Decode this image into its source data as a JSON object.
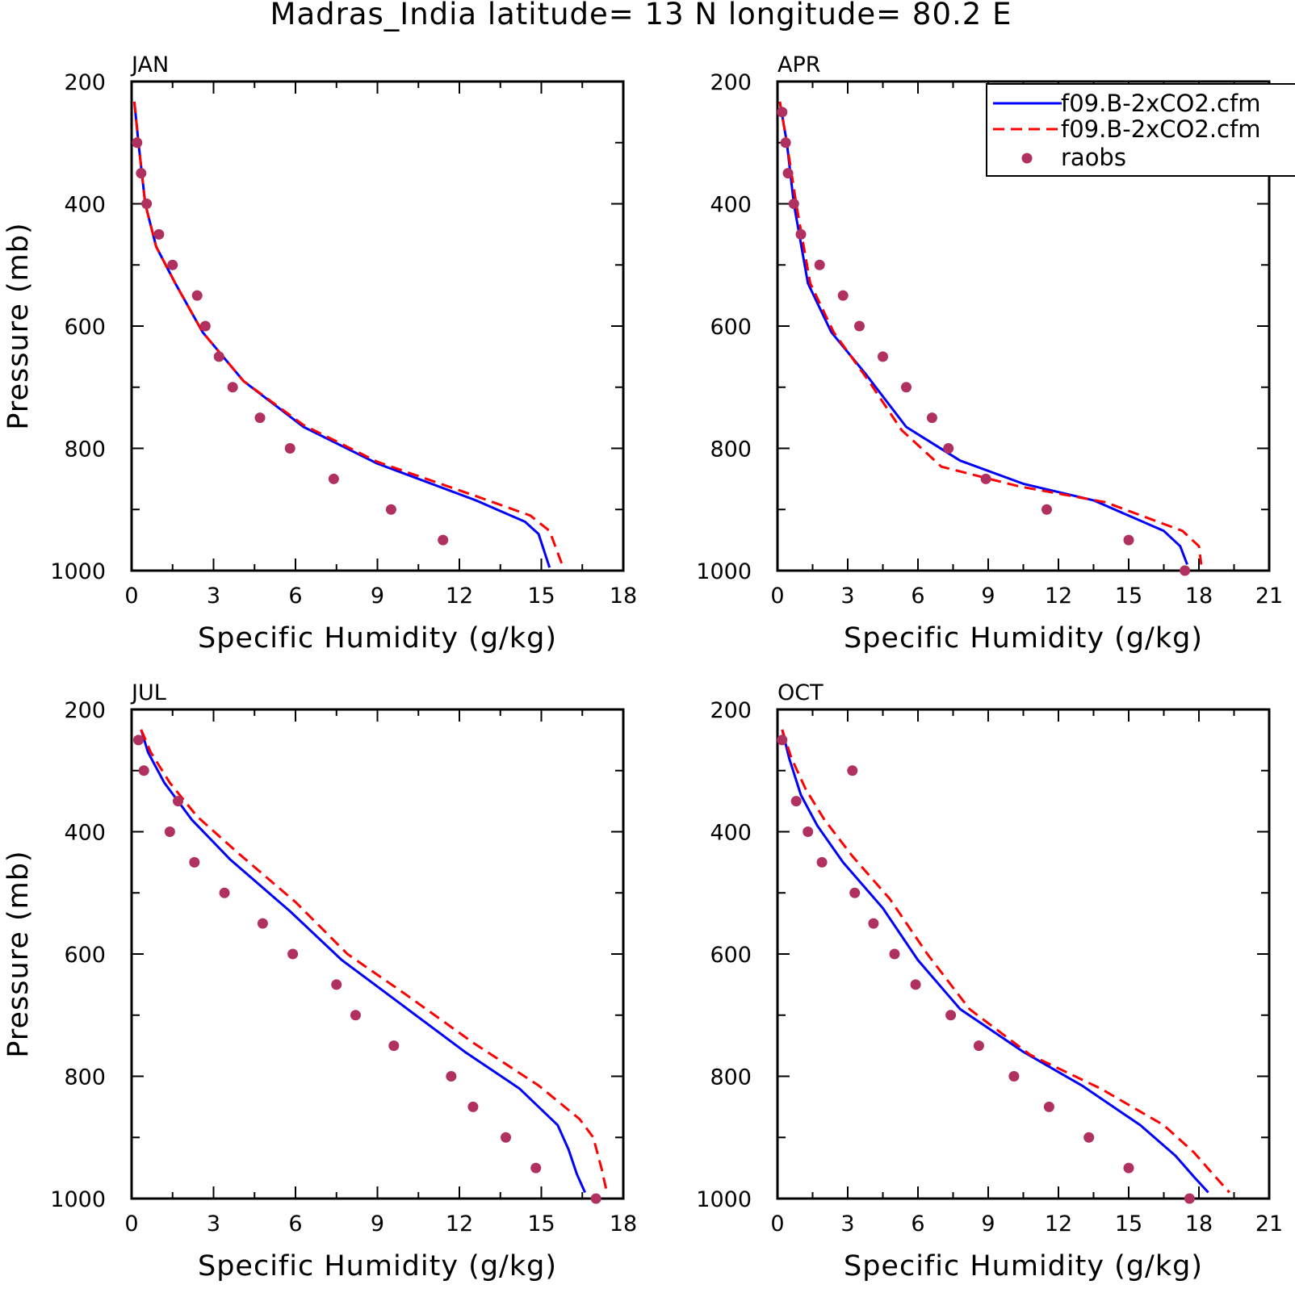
{
  "title": "Madras_India  latitude= 13 N longitude= 80.2 E",
  "colors": {
    "model1": "#0000ff",
    "model2": "#ff0000",
    "obs": "#b03060"
  },
  "legend": {
    "entries": [
      {
        "label": "f09.B-2xCO2.cfm",
        "style": "solid",
        "color": "#0000ff"
      },
      {
        "label": "f09.B-2xCO2.cfm",
        "style": "dashed",
        "color": "#ff0000"
      },
      {
        "label": "raobs",
        "style": "marker",
        "color": "#b03060"
      }
    ],
    "placement": "top-right of APR panel"
  },
  "chart_data": [
    {
      "type": "line",
      "panel": "JAN",
      "title": "JAN",
      "xlabel": "Specific Humidity (g/kg)",
      "ylabel": "Pressure (mb)",
      "xlim": [
        0,
        18
      ],
      "ylim": [
        1000,
        200
      ],
      "xticks": [
        0,
        3,
        6,
        9,
        12,
        15,
        18
      ],
      "yticks": [
        200,
        400,
        600,
        800,
        1000
      ],
      "series": [
        {
          "style": "solid",
          "color": "#0000ff",
          "x": [
            0.1,
            0.25,
            0.5,
            0.9,
            1.6,
            2.6,
            4.1,
            6.3,
            9.0,
            12.6,
            14.4,
            14.9,
            15.3
          ],
          "y": [
            233,
            300,
            400,
            470,
            530,
            610,
            690,
            765,
            825,
            885,
            920,
            940,
            995
          ]
        },
        {
          "style": "dashed",
          "color": "#ff0000",
          "x": [
            0.1,
            0.25,
            0.5,
            0.9,
            1.6,
            2.6,
            4.1,
            6.3,
            9.0,
            12.6,
            14.6,
            15.3,
            15.8
          ],
          "y": [
            233,
            300,
            400,
            470,
            530,
            610,
            690,
            762,
            822,
            878,
            910,
            935,
            995
          ]
        },
        {
          "style": "marker",
          "color": "#b03060",
          "x": [
            0.2,
            0.35,
            0.55,
            1.0,
            1.5,
            2.4,
            2.7,
            3.2,
            3.7,
            4.7,
            5.8,
            7.4,
            9.5,
            11.4
          ],
          "y": [
            300,
            350,
            400,
            450,
            500,
            550,
            600,
            650,
            700,
            750,
            800,
            850,
            900,
            950
          ]
        }
      ]
    },
    {
      "type": "line",
      "panel": "APR",
      "title": "APR",
      "xlabel": "Specific Humidity (g/kg)",
      "ylabel": "",
      "xlim": [
        0,
        21
      ],
      "ylim": [
        1000,
        200
      ],
      "xticks": [
        0,
        3,
        6,
        9,
        12,
        15,
        18,
        21
      ],
      "yticks": [
        200,
        400,
        600,
        800,
        1000
      ],
      "series": [
        {
          "style": "solid",
          "color": "#0000ff",
          "x": [
            0.1,
            0.4,
            0.7,
            1.3,
            2.3,
            3.8,
            5.5,
            7.8,
            10.5,
            13.5,
            16.5,
            17.2,
            17.5
          ],
          "y": [
            233,
            300,
            400,
            530,
            610,
            680,
            765,
            820,
            858,
            885,
            935,
            960,
            990
          ]
        },
        {
          "style": "dashed",
          "color": "#ff0000",
          "x": [
            0.1,
            0.4,
            0.8,
            1.4,
            2.4,
            3.9,
            5.3,
            7.0,
            10.3,
            14.0,
            17.3,
            18.0,
            18.1
          ],
          "y": [
            233,
            300,
            400,
            530,
            610,
            690,
            770,
            830,
            862,
            888,
            935,
            960,
            990
          ]
        },
        {
          "style": "marker",
          "color": "#b03060",
          "x": [
            0.2,
            0.35,
            0.45,
            0.7,
            1.0,
            1.8,
            2.8,
            3.5,
            4.5,
            5.5,
            6.6,
            7.3,
            8.9,
            11.5,
            15.0,
            17.4
          ],
          "y": [
            250,
            300,
            350,
            400,
            450,
            500,
            550,
            600,
            650,
            700,
            750,
            800,
            850,
            900,
            950,
            1000
          ]
        }
      ]
    },
    {
      "type": "line",
      "panel": "JUL",
      "title": "JUL",
      "xlabel": "Specific Humidity (g/kg)",
      "ylabel": "Pressure (mb)",
      "xlim": [
        0,
        18
      ],
      "ylim": [
        1000,
        200
      ],
      "xticks": [
        0,
        3,
        6,
        9,
        12,
        15,
        18
      ],
      "yticks": [
        200,
        400,
        600,
        800,
        1000
      ],
      "series": [
        {
          "style": "solid",
          "color": "#0000ff",
          "x": [
            0.35,
            0.6,
            1.2,
            2.2,
            3.6,
            5.8,
            7.7,
            9.8,
            12.2,
            14.2,
            15.6,
            16.0,
            16.3,
            16.6
          ],
          "y": [
            233,
            270,
            320,
            380,
            445,
            530,
            610,
            680,
            760,
            820,
            880,
            920,
            960,
            990
          ]
        },
        {
          "style": "dashed",
          "color": "#ff0000",
          "x": [
            0.35,
            0.7,
            1.4,
            2.4,
            3.9,
            6.0,
            7.9,
            10.0,
            12.5,
            14.9,
            16.4,
            16.9,
            17.2,
            17.4
          ],
          "y": [
            233,
            270,
            320,
            375,
            435,
            515,
            600,
            665,
            745,
            815,
            870,
            900,
            950,
            990
          ]
        },
        {
          "style": "marker",
          "color": "#b03060",
          "x": [
            0.25,
            0.45,
            1.7,
            1.4,
            2.3,
            3.4,
            4.8,
            5.9,
            7.5,
            8.2,
            9.6,
            11.7,
            12.5,
            13.7,
            14.8,
            17.0
          ],
          "y": [
            250,
            300,
            350,
            400,
            450,
            500,
            550,
            600,
            650,
            700,
            750,
            800,
            850,
            900,
            950,
            1000
          ]
        }
      ]
    },
    {
      "type": "line",
      "panel": "OCT",
      "title": "OCT",
      "xlabel": "Specific Humidity (g/kg)",
      "ylabel": "",
      "xlim": [
        0,
        21
      ],
      "ylim": [
        1000,
        200
      ],
      "xticks": [
        0,
        3,
        6,
        9,
        12,
        15,
        18,
        21
      ],
      "yticks": [
        200,
        400,
        600,
        800,
        1000
      ],
      "series": [
        {
          "style": "solid",
          "color": "#0000ff",
          "x": [
            0.2,
            0.5,
            1.0,
            1.7,
            2.8,
            4.5,
            6.0,
            7.8,
            10.5,
            13.0,
            15.5,
            17.0,
            17.8,
            18.4
          ],
          "y": [
            233,
            280,
            340,
            390,
            450,
            525,
            610,
            690,
            760,
            815,
            880,
            930,
            965,
            990
          ]
        },
        {
          "style": "dashed",
          "color": "#ff0000",
          "x": [
            0.2,
            0.6,
            1.2,
            2.0,
            3.2,
            4.8,
            6.4,
            8.2,
            10.8,
            13.8,
            16.5,
            17.8,
            18.6,
            19.3
          ],
          "y": [
            233,
            280,
            330,
            380,
            440,
            510,
            600,
            690,
            765,
            820,
            880,
            925,
            960,
            990
          ]
        },
        {
          "style": "marker",
          "color": "#b03060",
          "x": [
            0.2,
            3.2,
            0.8,
            1.3,
            1.9,
            3.3,
            4.1,
            5.0,
            5.9,
            7.4,
            8.6,
            10.1,
            11.6,
            13.3,
            15.0,
            17.6
          ],
          "y": [
            250,
            300,
            350,
            400,
            450,
            500,
            550,
            600,
            650,
            700,
            750,
            800,
            850,
            900,
            950,
            1000
          ]
        }
      ]
    }
  ]
}
